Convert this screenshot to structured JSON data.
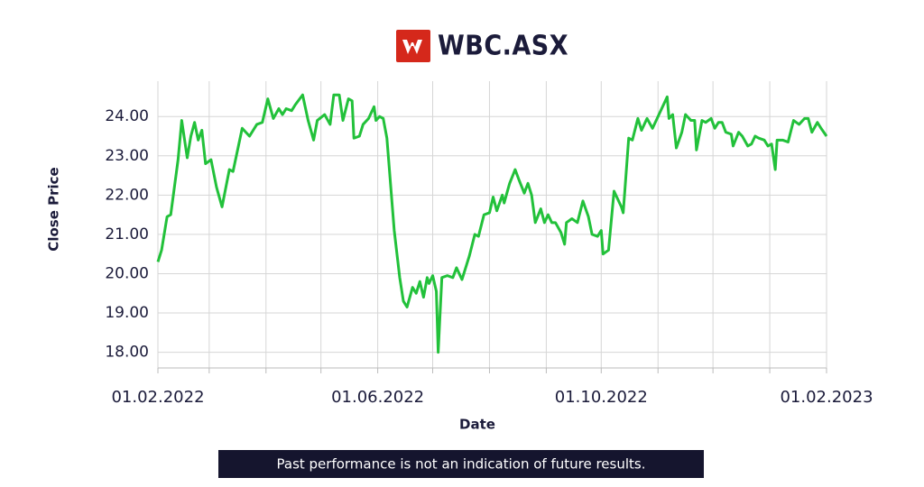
{
  "chart_data": {
    "type": "line",
    "title": "WBC.ASX",
    "x_label": "Date",
    "y_label": "Close Price",
    "note": "Past performance is not an indication of future results.",
    "color": "#22c13a",
    "grid": true,
    "xlim": [
      "2022-02-01",
      "2023-02-01"
    ],
    "xticks": [
      {
        "value": "2022-02-01",
        "label": "01.02.2022"
      },
      {
        "value": "2022-03-01",
        "label": null
      },
      {
        "value": "2022-04-01",
        "label": null
      },
      {
        "value": "2022-05-01",
        "label": null
      },
      {
        "value": "2022-06-01",
        "label": "01.06.2022"
      },
      {
        "value": "2022-07-01",
        "label": null
      },
      {
        "value": "2022-08-01",
        "label": null
      },
      {
        "value": "2022-09-01",
        "label": null
      },
      {
        "value": "2022-10-01",
        "label": "01.10.2022"
      },
      {
        "value": "2022-11-01",
        "label": null
      },
      {
        "value": "2022-12-01",
        "label": null
      },
      {
        "value": "2023-01-01",
        "label": null
      },
      {
        "value": "2023-02-01",
        "label": "01.02.2023"
      }
    ],
    "ylim": [
      17.6,
      24.9
    ],
    "yticks": [
      {
        "value": 18,
        "label": "18.00"
      },
      {
        "value": 19,
        "label": "19.00"
      },
      {
        "value": 20,
        "label": "20.00"
      },
      {
        "value": 21,
        "label": "21.00"
      },
      {
        "value": 22,
        "label": "22.00"
      },
      {
        "value": 23,
        "label": "23.00"
      },
      {
        "value": 24,
        "label": "24.00"
      }
    ],
    "x": [
      "2022-02-01",
      "2022-02-03",
      "2022-02-06",
      "2022-02-08",
      "2022-02-12",
      "2022-02-14",
      "2022-02-17",
      "2022-02-19",
      "2022-02-21",
      "2022-02-23",
      "2022-02-25",
      "2022-02-27",
      "2022-03-02",
      "2022-03-05",
      "2022-03-08",
      "2022-03-12",
      "2022-03-14",
      "2022-03-19",
      "2022-03-23",
      "2022-03-27",
      "2022-03-30",
      "2022-04-02",
      "2022-04-05",
      "2022-04-08",
      "2022-04-10",
      "2022-04-12",
      "2022-04-15",
      "2022-04-17",
      "2022-04-21",
      "2022-04-24",
      "2022-04-27",
      "2022-04-29",
      "2022-05-03",
      "2022-05-06",
      "2022-05-08",
      "2022-05-11",
      "2022-05-13",
      "2022-05-16",
      "2022-05-18",
      "2022-05-19",
      "2022-05-22",
      "2022-05-24",
      "2022-05-27",
      "2022-05-30",
      "2022-05-31",
      "2022-06-02",
      "2022-06-04",
      "2022-06-06",
      "2022-06-10",
      "2022-06-13",
      "2022-06-15",
      "2022-06-17",
      "2022-06-20",
      "2022-06-22",
      "2022-06-24",
      "2022-06-26",
      "2022-06-28",
      "2022-06-29",
      "2022-07-01",
      "2022-07-03",
      "2022-07-04",
      "2022-07-06",
      "2022-07-09",
      "2022-07-12",
      "2022-07-14",
      "2022-07-17",
      "2022-07-21",
      "2022-07-24",
      "2022-07-26",
      "2022-07-29",
      "2022-08-01",
      "2022-08-03",
      "2022-08-05",
      "2022-08-08",
      "2022-08-09",
      "2022-08-12",
      "2022-08-15",
      "2022-08-17",
      "2022-08-20",
      "2022-08-22",
      "2022-08-24",
      "2022-08-26",
      "2022-08-29",
      "2022-08-31",
      "2022-09-02",
      "2022-09-04",
      "2022-09-06",
      "2022-09-09",
      "2022-09-11",
      "2022-09-12",
      "2022-09-15",
      "2022-09-18",
      "2022-09-21",
      "2022-09-24",
      "2022-09-26",
      "2022-09-29",
      "2022-10-01",
      "2022-10-02",
      "2022-10-05",
      "2022-10-08",
      "2022-10-12",
      "2022-10-13",
      "2022-10-16",
      "2022-10-18",
      "2022-10-21",
      "2022-10-23",
      "2022-10-26",
      "2022-10-29",
      "2022-11-01",
      "2022-11-04",
      "2022-11-06",
      "2022-11-07",
      "2022-11-09",
      "2022-11-11",
      "2022-11-14",
      "2022-11-16",
      "2022-11-19",
      "2022-11-21",
      "2022-11-22",
      "2022-11-25",
      "2022-11-27",
      "2022-11-30",
      "2022-12-02",
      "2022-12-04",
      "2022-12-06",
      "2022-12-08",
      "2022-12-11",
      "2022-12-12",
      "2022-12-15",
      "2022-12-17",
      "2022-12-20",
      "2022-12-22",
      "2022-12-24",
      "2022-12-26",
      "2022-12-29",
      "2022-12-31",
      "2023-01-02",
      "2023-01-04",
      "2023-01-05",
      "2023-01-08",
      "2023-01-11",
      "2023-01-14",
      "2023-01-17",
      "2023-01-20",
      "2023-01-22",
      "2023-01-24",
      "2023-01-27",
      "2023-01-29",
      "2023-02-01"
    ],
    "values": [
      20.3,
      20.6,
      21.45,
      21.5,
      22.9,
      23.9,
      22.95,
      23.5,
      23.85,
      23.4,
      23.65,
      22.8,
      22.9,
      22.2,
      21.7,
      22.65,
      22.6,
      23.7,
      23.5,
      23.8,
      23.85,
      24.45,
      23.95,
      24.2,
      24.05,
      24.2,
      24.15,
      24.3,
      24.55,
      23.9,
      23.4,
      23.9,
      24.05,
      23.8,
      24.55,
      24.55,
      23.9,
      24.45,
      24.4,
      23.45,
      23.5,
      23.8,
      23.95,
      24.25,
      23.9,
      24.0,
      23.95,
      23.45,
      21.1,
      19.9,
      19.3,
      19.15,
      19.65,
      19.5,
      19.8,
      19.4,
      19.9,
      19.75,
      19.95,
      19.55,
      18.0,
      19.9,
      19.95,
      19.9,
      20.15,
      19.85,
      20.45,
      21.0,
      20.95,
      21.5,
      21.55,
      21.95,
      21.6,
      22.0,
      21.8,
      22.3,
      22.65,
      22.4,
      22.05,
      22.3,
      22.0,
      21.3,
      21.65,
      21.3,
      21.5,
      21.3,
      21.3,
      21.05,
      20.75,
      21.3,
      21.4,
      21.3,
      21.85,
      21.45,
      21.0,
      20.95,
      21.1,
      20.5,
      20.6,
      22.1,
      21.7,
      21.55,
      23.45,
      23.4,
      23.95,
      23.65,
      23.95,
      23.7,
      24.0,
      24.3,
      24.5,
      23.95,
      24.05,
      23.2,
      23.6,
      24.05,
      23.9,
      23.9,
      23.15,
      23.9,
      23.85,
      23.95,
      23.7,
      23.85,
      23.85,
      23.6,
      23.55,
      23.25,
      23.6,
      23.5,
      23.25,
      23.3,
      23.5,
      23.45,
      23.4,
      23.25,
      23.3,
      22.65,
      23.4,
      23.4,
      23.35,
      23.9,
      23.8,
      23.95,
      23.95,
      23.6,
      23.85,
      23.7,
      23.5
    ]
  }
}
